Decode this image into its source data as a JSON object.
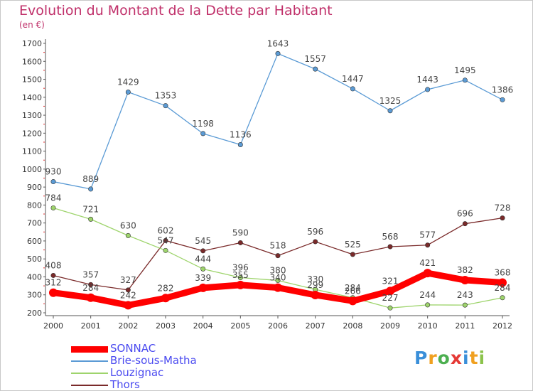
{
  "chart_data": {
    "type": "line",
    "title": "Evolution du Montant de la Dette par Habitant",
    "subtitle": "(en €)",
    "x": [
      "2000",
      "2001",
      "2002",
      "2003",
      "2004",
      "2005",
      "2006",
      "2007",
      "2008",
      "2009",
      "2010",
      "2011",
      "2012"
    ],
    "ylim": [
      200,
      1700
    ],
    "yticks": [
      200,
      300,
      400,
      500,
      600,
      700,
      800,
      900,
      1000,
      1100,
      1200,
      1300,
      1400,
      1500,
      1600,
      1700
    ],
    "grid": false,
    "legend_position": "bottom-left",
    "series": [
      {
        "name": "SONNAC",
        "color": "#ff0000",
        "values": [
          312,
          284,
          242,
          282,
          339,
          355,
          340,
          299,
          266,
          321,
          421,
          382,
          368
        ]
      },
      {
        "name": "Brie-sous-Matha",
        "color": "#5b9bd5",
        "values": [
          930,
          889,
          1429,
          1353,
          1198,
          1136,
          1643,
          1557,
          1447,
          1325,
          1443,
          1495,
          1386
        ]
      },
      {
        "name": "Louzignac",
        "color": "#9ed46c",
        "values": [
          784,
          721,
          630,
          547,
          444,
          396,
          380,
          330,
          284,
          227,
          244,
          243,
          284
        ]
      },
      {
        "name": "Thors",
        "color": "#7a2a2a",
        "values": [
          408,
          357,
          327,
          602,
          545,
          590,
          518,
          596,
          525,
          568,
          577,
          696,
          728
        ]
      }
    ]
  },
  "logo": {
    "letters": [
      {
        "char": "P",
        "color": "#3a8fd9"
      },
      {
        "char": "r",
        "color": "#f0a020"
      },
      {
        "char": "o",
        "color": "#4caf50"
      },
      {
        "char": "x",
        "color": "#e53935"
      },
      {
        "char": "i",
        "color": "#3a8fd9"
      },
      {
        "char": "t",
        "color": "#f0a020"
      },
      {
        "char": "i",
        "color": "#8bc34a"
      }
    ]
  }
}
